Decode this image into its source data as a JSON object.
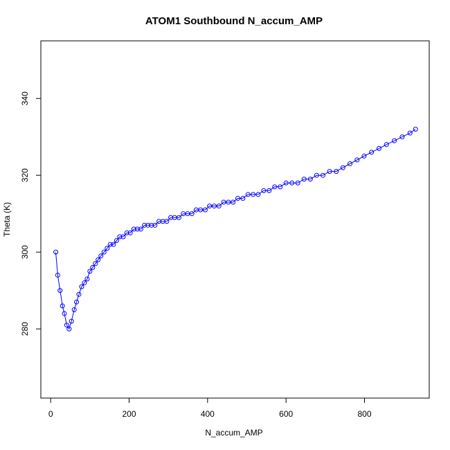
{
  "chart_data": {
    "type": "line",
    "title": "ATOM1 Southbound N_accum_AMP",
    "xlabel": "N_accum_AMP",
    "ylabel": "Theta (K)",
    "xlim": [
      -25,
      965
    ],
    "ylim": [
      262,
      355
    ],
    "x_ticks": [
      "0",
      "200",
      "400",
      "600",
      "800"
    ],
    "y_ticks": [
      "280",
      "300",
      "320",
      "340"
    ],
    "line_style": "lines with open circle markers",
    "grid": false,
    "legend": "none",
    "colors": {
      "series": "#0000ff",
      "axes": "#000000",
      "background": "#ffffff"
    },
    "series": [
      {
        "x": [
          13,
          18,
          24,
          30,
          35,
          41,
          47,
          53,
          60,
          66,
          72,
          79,
          86,
          93,
          100,
          107,
          114,
          121,
          128,
          136,
          144,
          152,
          160,
          168,
          176,
          185,
          194,
          203,
          212,
          221,
          230,
          239,
          248,
          257,
          266,
          276,
          286,
          296,
          306,
          316,
          327,
          338,
          349,
          360,
          371,
          382,
          394,
          405,
          417,
          429,
          441,
          453,
          465,
          477,
          490,
          503,
          516,
          529,
          543,
          557,
          571,
          585,
          600,
          615,
          630,
          646,
          662,
          678,
          694,
          711,
          728,
          745,
          763,
          781,
          799,
          818,
          837,
          856,
          876,
          896,
          916,
          930
        ],
        "y": [
          300,
          294,
          290,
          286,
          284,
          281,
          280,
          282,
          285,
          287,
          289,
          291,
          292,
          293,
          295,
          296,
          297,
          298,
          299,
          300,
          301,
          302,
          302,
          303,
          304,
          304,
          305,
          305,
          306,
          306,
          306,
          307,
          307,
          307,
          307,
          308,
          308,
          308,
          309,
          309,
          309,
          310,
          310,
          310,
          311,
          311,
          311,
          312,
          312,
          312,
          313,
          313,
          313,
          314,
          314,
          315,
          315,
          315,
          316,
          316,
          317,
          317,
          318,
          318,
          318,
          319,
          319,
          320,
          320,
          321,
          321,
          322,
          323,
          324,
          325,
          326,
          327,
          328,
          329,
          330,
          331,
          332
        ]
      }
    ]
  }
}
